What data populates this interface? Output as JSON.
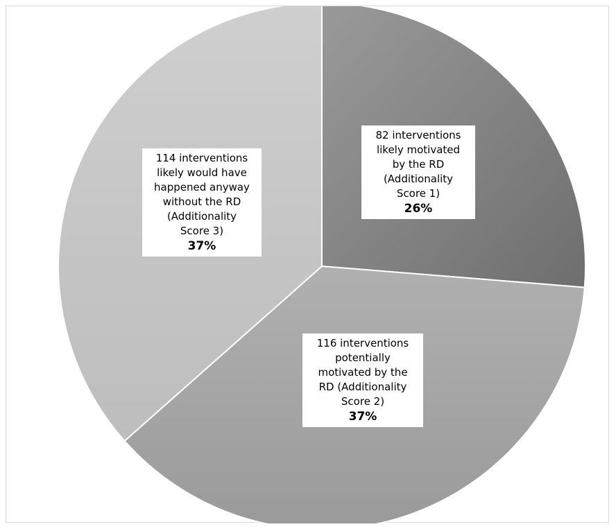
{
  "chart_data": {
    "type": "pie",
    "title": "",
    "slices": [
      {
        "value": 82,
        "label": "82 interventions\nlikely motivated\nby the RD\n(Additionality\nScore 1)",
        "percent_label": "26%",
        "color": "#808080"
      },
      {
        "value": 116,
        "label": "116 interventions\npotentially\nmotivated by the\nRD (Additionality\nScore 2)",
        "percent_label": "37%",
        "color": "#a6a6a6"
      },
      {
        "value": 114,
        "label": "114 interventions\nlikely would have\nhappened anyway\nwithout the RD\n(Additionality\nScore 3)",
        "percent_label": "37%",
        "color": "#c8c8c8"
      }
    ]
  }
}
